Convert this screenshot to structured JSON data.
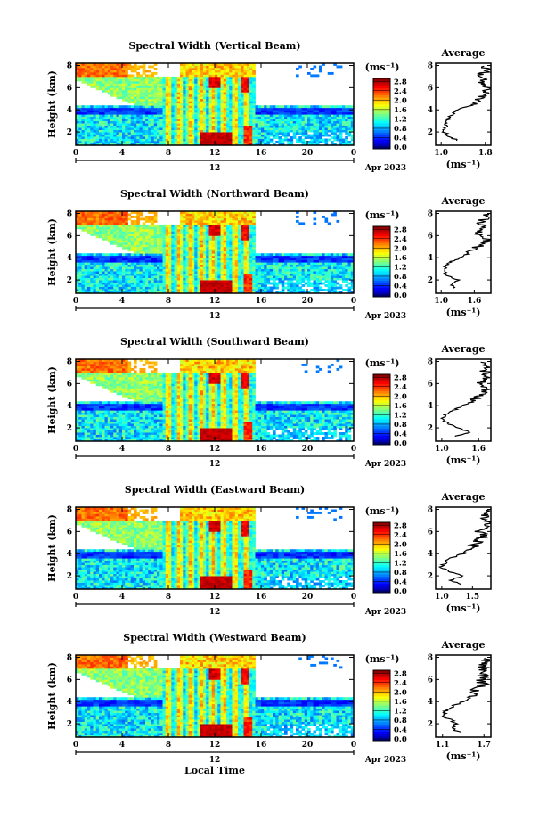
{
  "figure": {
    "date_label": "Apr 2023",
    "day_label": "12",
    "x_axis_label": "Local Time",
    "units_label": "(ms⁻¹)",
    "avg_title": "Average",
    "y_axis_label": "Height (km)"
  },
  "chart_data": [
    {
      "type": "heatmap",
      "title": "Spectral Width (Vertical Beam)",
      "xlabel": "",
      "ylabel": "Height (km)",
      "x_ticks": [
        "0",
        "4",
        "8",
        "12",
        "16",
        "20",
        "0"
      ],
      "y_ticks": [
        "2",
        "4",
        "6",
        "8"
      ],
      "xlim": [
        0,
        24
      ],
      "ylim": [
        0.8,
        8.2
      ],
      "colorbar": {
        "label": "(ms⁻¹)",
        "ticks": [
          "2.8",
          "2.4",
          "2.0",
          "1.6",
          "1.2",
          "0.8",
          "0.4",
          "0.0"
        ],
        "range": [
          0,
          3
        ]
      },
      "average_profile": {
        "title": "Average",
        "xlabel": "(ms⁻¹)",
        "x_ticks": [
          "1.0",
          "1.8"
        ],
        "xlim": [
          0.9,
          1.9
        ],
        "y_ticks": [
          "2",
          "4",
          "6",
          "8"
        ],
        "height": [
          1.2,
          1.6,
          2.0,
          2.4,
          2.8,
          3.2,
          3.6,
          4.0,
          4.4,
          4.8,
          5.2,
          5.6,
          6.0,
          6.4,
          6.8,
          7.2,
          7.6,
          8.0
        ],
        "value": [
          1.3,
          1.15,
          1.05,
          1.08,
          1.1,
          1.12,
          1.2,
          1.3,
          1.55,
          1.65,
          1.75,
          1.8,
          1.85,
          1.7,
          1.8,
          1.75,
          1.82,
          1.78
        ]
      }
    },
    {
      "type": "heatmap",
      "title": "Spectral Width (Northward Beam)",
      "xlabel": "",
      "ylabel": "Height (km)",
      "x_ticks": [
        "0",
        "4",
        "8",
        "12",
        "16",
        "20",
        "0"
      ],
      "y_ticks": [
        "2",
        "4",
        "6",
        "8"
      ],
      "xlim": [
        0,
        24
      ],
      "ylim": [
        0.8,
        8.2
      ],
      "colorbar": {
        "label": "(ms⁻¹)",
        "ticks": [
          "2.8",
          "2.4",
          "2.0",
          "1.6",
          "1.2",
          "0.8",
          "0.4",
          "0.0"
        ],
        "range": [
          0,
          3
        ]
      },
      "average_profile": {
        "title": "Average",
        "xlabel": "(ms⁻¹)",
        "x_ticks": [
          "1.0",
          "1.6"
        ],
        "xlim": [
          0.9,
          1.9
        ],
        "y_ticks": [
          "2",
          "4",
          "6",
          "8"
        ],
        "height": [
          1.2,
          1.6,
          2.0,
          2.4,
          2.8,
          3.2,
          3.6,
          4.0,
          4.4,
          4.8,
          5.2,
          5.6,
          6.0,
          6.4,
          6.8,
          7.2,
          7.6,
          8.0
        ],
        "value": [
          1.25,
          1.2,
          1.3,
          1.1,
          1.05,
          1.08,
          1.15,
          1.35,
          1.5,
          1.6,
          1.75,
          1.85,
          1.7,
          1.65,
          1.75,
          1.7,
          1.8,
          1.78
        ]
      }
    },
    {
      "type": "heatmap",
      "title": "Spectral Width (Southward Beam)",
      "xlabel": "",
      "ylabel": "Height (km)",
      "x_ticks": [
        "0",
        "4",
        "8",
        "12",
        "16",
        "20",
        "0"
      ],
      "y_ticks": [
        "2",
        "4",
        "6",
        "8"
      ],
      "xlim": [
        0,
        24
      ],
      "ylim": [
        0.8,
        8.2
      ],
      "colorbar": {
        "label": "(ms⁻¹)",
        "ticks": [
          "2.8",
          "2.4",
          "2.0",
          "1.6",
          "1.2",
          "0.8",
          "0.4",
          "0.0"
        ],
        "range": [
          0,
          3
        ]
      },
      "average_profile": {
        "title": "Average",
        "xlabel": "(ms⁻¹)",
        "x_ticks": [
          "1.0",
          "1.6"
        ],
        "xlim": [
          0.9,
          1.8
        ],
        "y_ticks": [
          "2",
          "4",
          "6",
          "8"
        ],
        "height": [
          1.2,
          1.6,
          2.0,
          2.4,
          2.8,
          3.2,
          3.6,
          4.0,
          4.4,
          4.8,
          5.2,
          5.6,
          6.0,
          6.4,
          6.8,
          7.2,
          7.6,
          8.0
        ],
        "value": [
          1.2,
          1.45,
          1.25,
          1.1,
          1.0,
          1.05,
          1.2,
          1.35,
          1.5,
          1.6,
          1.65,
          1.75,
          1.65,
          1.7,
          1.75,
          1.68,
          1.72,
          1.7
        ]
      }
    },
    {
      "type": "heatmap",
      "title": "Spectral Width (Eastward Beam)",
      "xlabel": "",
      "ylabel": "Height (km)",
      "x_ticks": [
        "0",
        "4",
        "8",
        "12",
        "16",
        "20",
        "0"
      ],
      "y_ticks": [
        "2",
        "4",
        "6",
        "8"
      ],
      "xlim": [
        0,
        24
      ],
      "ylim": [
        0.8,
        8.2
      ],
      "colorbar": {
        "label": "(ms⁻¹)",
        "ticks": [
          "2.8",
          "2.4",
          "2.0",
          "1.6",
          "1.2",
          "0.8",
          "0.4",
          "0.0"
        ],
        "range": [
          0,
          3
        ]
      },
      "average_profile": {
        "title": "Average",
        "xlabel": "(ms⁻¹)",
        "x_ticks": [
          "1.0",
          "1.5"
        ],
        "xlim": [
          0.9,
          1.8
        ],
        "y_ticks": [
          "2",
          "4",
          "6",
          "8"
        ],
        "height": [
          1.2,
          1.6,
          2.0,
          2.4,
          2.8,
          3.2,
          3.6,
          4.0,
          4.4,
          4.8,
          5.2,
          5.6,
          6.0,
          6.4,
          6.8,
          7.2,
          7.6,
          8.0
        ],
        "value": [
          1.3,
          1.15,
          1.35,
          1.1,
          1.0,
          1.05,
          1.15,
          1.35,
          1.45,
          1.55,
          1.6,
          1.7,
          1.62,
          1.68,
          1.75,
          1.7,
          1.72,
          1.75
        ]
      }
    },
    {
      "type": "heatmap",
      "title": "Spectral Width (Westward Beam)",
      "xlabel": "Local Time",
      "ylabel": "Height (km)",
      "x_ticks": [
        "0",
        "4",
        "8",
        "12",
        "16",
        "20",
        "0"
      ],
      "y_ticks": [
        "2",
        "4",
        "6",
        "8"
      ],
      "xlim": [
        0,
        24
      ],
      "ylim": [
        0.8,
        8.2
      ],
      "colorbar": {
        "label": "(ms⁻¹)",
        "ticks": [
          "2.8",
          "2.4",
          "2.0",
          "1.6",
          "1.2",
          "0.8",
          "0.4",
          "0.0"
        ],
        "range": [
          0,
          3
        ]
      },
      "average_profile": {
        "title": "Average",
        "xlabel": "(ms⁻¹)",
        "x_ticks": [
          "1.1",
          "1.7"
        ],
        "xlim": [
          1.0,
          1.8
        ],
        "y_ticks": [
          "2",
          "4",
          "6",
          "8"
        ],
        "height": [
          1.2,
          1.6,
          2.0,
          2.4,
          2.8,
          3.2,
          3.6,
          4.0,
          4.4,
          4.8,
          5.2,
          5.6,
          6.0,
          6.4,
          6.8,
          7.2,
          7.6,
          8.0
        ],
        "value": [
          1.35,
          1.25,
          1.3,
          1.2,
          1.1,
          1.15,
          1.25,
          1.4,
          1.5,
          1.55,
          1.62,
          1.7,
          1.65,
          1.7,
          1.72,
          1.7,
          1.75,
          1.73
        ]
      }
    }
  ]
}
